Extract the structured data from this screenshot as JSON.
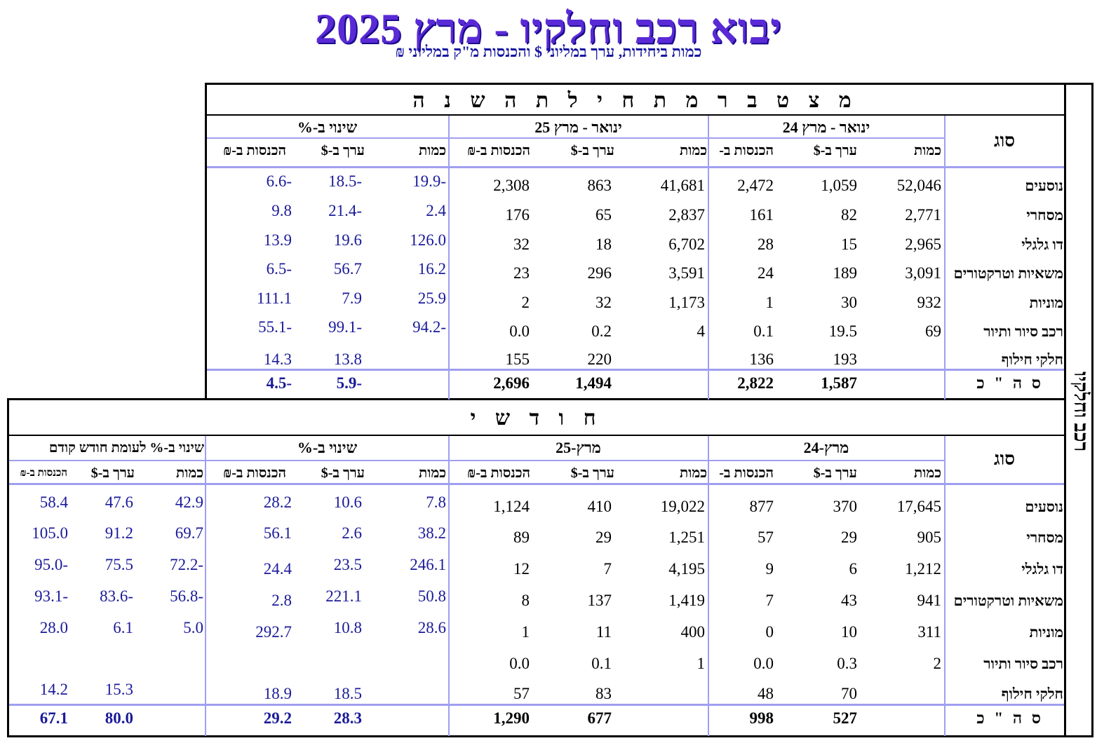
{
  "title": "יבוא רכב וחלקיו - מרץ 2025",
  "subtitle": "כמות ביחידות, ערך במליוני $ והכנסות מ\"ק במליוני ₪",
  "side_label": "רכב וחלקיו",
  "cumulative": {
    "heading": "מ צ ט ב ר   מ ת ח י ל ת   ה ש נ ה",
    "type_header": "סוג",
    "period_a": "ינואר - מרץ 24",
    "period_b": "ינואר - מרץ 25",
    "change": "שינוי ב-%",
    "sub": {
      "qty": "כמות",
      "value": "ערך ב-$",
      "revenue": "הכנסות ב-₪",
      "revenue_cut": "הכנסות ב-"
    },
    "rows": [
      {
        "cat": "נוסעים",
        "a_qty": "52,046",
        "a_val": "1,059",
        "a_rev": "2,472",
        "b_qty": "41,681",
        "b_val": "863",
        "b_rev": "2,308",
        "c_qty": "-19.9",
        "c_val": "-18.5",
        "c_rev": "-6.6"
      },
      {
        "cat": "מסחרי",
        "a_qty": "2,771",
        "a_val": "82",
        "a_rev": "161",
        "b_qty": "2,837",
        "b_val": "65",
        "b_rev": "176",
        "c_qty": "2.4",
        "c_val": "-21.4",
        "c_rev": "9.8"
      },
      {
        "cat": "דו גלגלי",
        "a_qty": "2,965",
        "a_val": "15",
        "a_rev": "28",
        "b_qty": "6,702",
        "b_val": "18",
        "b_rev": "32",
        "c_qty": "126.0",
        "c_val": "19.6",
        "c_rev": "13.9"
      },
      {
        "cat": "משאיות וטרקטורים",
        "a_qty": "3,091",
        "a_val": "189",
        "a_rev": "24",
        "b_qty": "3,591",
        "b_val": "296",
        "b_rev": "23",
        "c_qty": "16.2",
        "c_val": "56.7",
        "c_rev": "-6.5"
      },
      {
        "cat": "מוניות",
        "a_qty": "932",
        "a_val": "30",
        "a_rev": "1",
        "b_qty": "1,173",
        "b_val": "32",
        "b_rev": "2",
        "c_qty": "25.9",
        "c_val": "7.9",
        "c_rev": "111.1"
      },
      {
        "cat": "רכב סיור ותיור",
        "a_qty": "69",
        "a_val": "19.5",
        "a_rev": "0.1",
        "b_qty": "4",
        "b_val": "0.2",
        "b_rev": "0.0",
        "c_qty": "-94.2",
        "c_val": "-99.1",
        "c_rev": "-55.1"
      },
      {
        "cat": "חלקי חילוף",
        "a_qty": "",
        "a_val": "193",
        "a_rev": "136",
        "b_qty": "",
        "b_val": "220",
        "b_rev": "155",
        "c_qty": "",
        "c_val": "13.8",
        "c_rev": "14.3"
      }
    ],
    "total": {
      "cat": "ס ה \" כ",
      "a_val": "1,587",
      "a_rev": "2,822",
      "b_val": "1,494",
      "b_rev": "2,696",
      "c_val": "-5.9",
      "c_rev": "-4.5"
    }
  },
  "monthly": {
    "heading": "ח ו ד ש י",
    "type_header": "סוג",
    "period_a": "מרץ-24",
    "period_b": "מרץ-25",
    "change": "שינוי ב-%",
    "change_prev": "שינוי ב-% לעומת חודש קודם",
    "sub": {
      "qty": "כמות",
      "value": "ערך ב-$",
      "revenue": "הכנסות ב-₪",
      "revenue_cut": "הכנסות ב-",
      "revenue_small": "הכנסות ב-₪"
    },
    "rows": [
      {
        "cat": "נוסעים",
        "a_qty": "17,645",
        "a_val": "370",
        "a_rev": "877",
        "b_qty": "19,022",
        "b_val": "410",
        "b_rev": "1,124",
        "c_qty": "7.8",
        "c_val": "10.6",
        "c_rev": "28.2",
        "p_qty": "42.9",
        "p_val": "47.6",
        "p_rev": "58.4"
      },
      {
        "cat": "מסחרי",
        "a_qty": "905",
        "a_val": "29",
        "a_rev": "57",
        "b_qty": "1,251",
        "b_val": "29",
        "b_rev": "89",
        "c_qty": "38.2",
        "c_val": "2.6",
        "c_rev": "56.1",
        "p_qty": "69.7",
        "p_val": "91.2",
        "p_rev": "105.0"
      },
      {
        "cat": "דו גלגלי",
        "a_qty": "1,212",
        "a_val": "6",
        "a_rev": "9",
        "b_qty": "4,195",
        "b_val": "7",
        "b_rev": "12",
        "c_qty": "246.1",
        "c_val": "23.5",
        "c_rev": "24.4",
        "p_qty": "-72.2",
        "p_val": "75.5",
        "p_rev": "-95.0"
      },
      {
        "cat": "משאיות וטרקטורים",
        "a_qty": "941",
        "a_val": "43",
        "a_rev": "7",
        "b_qty": "1,419",
        "b_val": "137",
        "b_rev": "8",
        "c_qty": "50.8",
        "c_val": "221.1",
        "c_rev": "2.8",
        "p_qty": "-56.8",
        "p_val": "-83.6",
        "p_rev": "-93.1"
      },
      {
        "cat": "מוניות",
        "a_qty": "311",
        "a_val": "10",
        "a_rev": "0",
        "b_qty": "400",
        "b_val": "11",
        "b_rev": "1",
        "c_qty": "28.6",
        "c_val": "10.8",
        "c_rev": "292.7",
        "p_qty": "5.0",
        "p_val": "6.1",
        "p_rev": "28.0"
      },
      {
        "cat": "רכב סיור ותיור",
        "a_qty": "2",
        "a_val": "0.3",
        "a_rev": "0.0",
        "b_qty": "1",
        "b_val": "0.1",
        "b_rev": "0.0",
        "c_qty": "",
        "c_val": "",
        "c_rev": "",
        "p_qty": "",
        "p_val": "",
        "p_rev": ""
      },
      {
        "cat": "חלקי חילוף",
        "a_qty": "",
        "a_val": "70",
        "a_rev": "48",
        "b_qty": "",
        "b_val": "83",
        "b_rev": "57",
        "c_qty": "",
        "c_val": "18.5",
        "c_rev": "18.9",
        "p_qty": "",
        "p_val": "15.3",
        "p_rev": "14.2"
      }
    ],
    "total": {
      "cat": "ס ה \" כ",
      "a_val": "527",
      "a_rev": "998",
      "b_val": "677",
      "b_rev": "1,290",
      "c_val": "28.3",
      "c_rev": "29.2",
      "p_val": "80.0",
      "p_rev": "67.1"
    }
  }
}
